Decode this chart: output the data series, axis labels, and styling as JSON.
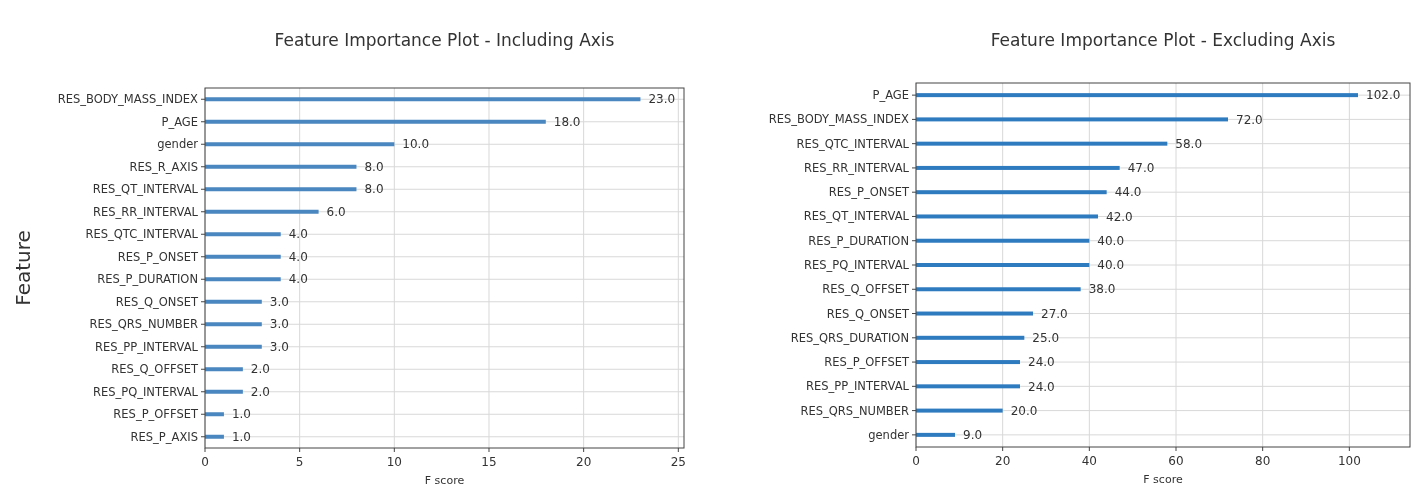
{
  "chart_data": [
    {
      "type": "bar",
      "orientation": "horizontal",
      "title": "Feature Importance Plot - Including Axis",
      "xlabel": "F score",
      "ylabel": "Feature",
      "categories": [
        "RES_BODY_MASS_INDEX",
        "P_AGE",
        "gender",
        "RES_R_AXIS",
        "RES_QT_INTERVAL",
        "RES_RR_INTERVAL",
        "RES_QTC_INTERVAL",
        "RES_P_ONSET",
        "RES_P_DURATION",
        "RES_Q_ONSET",
        "RES_QRS_NUMBER",
        "RES_PP_INTERVAL",
        "RES_Q_OFFSET",
        "RES_PQ_INTERVAL",
        "RES_P_OFFSET",
        "RES_P_AXIS"
      ],
      "values": [
        23,
        18,
        10,
        8,
        8,
        6,
        4,
        4,
        4,
        3,
        3,
        3,
        2,
        2,
        1,
        1
      ],
      "value_labels": [
        "23.0",
        "18.0",
        "10.0",
        "8.0",
        "8.0",
        "6.0",
        "4.0",
        "4.0",
        "4.0",
        "3.0",
        "3.0",
        "3.0",
        "2.0",
        "2.0",
        "1.0",
        "1.0"
      ],
      "color": "#4a86c0",
      "xlim": [
        0,
        25.3
      ],
      "xticks": [
        0,
        5,
        10,
        15,
        20,
        25
      ],
      "grid": true
    },
    {
      "type": "bar",
      "orientation": "horizontal",
      "title": "Feature Importance Plot - Excluding Axis",
      "xlabel": "F score",
      "categories": [
        "P_AGE",
        "RES_BODY_MASS_INDEX",
        "RES_QTC_INTERVAL",
        "RES_RR_INTERVAL",
        "RES_P_ONSET",
        "RES_QT_INTERVAL",
        "RES_P_DURATION",
        "RES_PQ_INTERVAL",
        "RES_Q_OFFSET",
        "RES_Q_ONSET",
        "RES_QRS_DURATION",
        "RES_P_OFFSET",
        "RES_PP_INTERVAL",
        "RES_QRS_NUMBER",
        "gender"
      ],
      "values": [
        102,
        72,
        58,
        47,
        44,
        42,
        40,
        40,
        38,
        27,
        25,
        24,
        24,
        20,
        9
      ],
      "value_labels": [
        "102.0",
        "72.0",
        "58.0",
        "47.0",
        "44.0",
        "42.0",
        "40.0",
        "40.0",
        "38.0",
        "27.0",
        "25.0",
        "24.0",
        "24.0",
        "20.0",
        "9.0"
      ],
      "color": "#2f7bbf",
      "xlim": [
        0,
        114
      ],
      "xticks": [
        0,
        20,
        40,
        60,
        80,
        100
      ],
      "grid": true
    }
  ]
}
